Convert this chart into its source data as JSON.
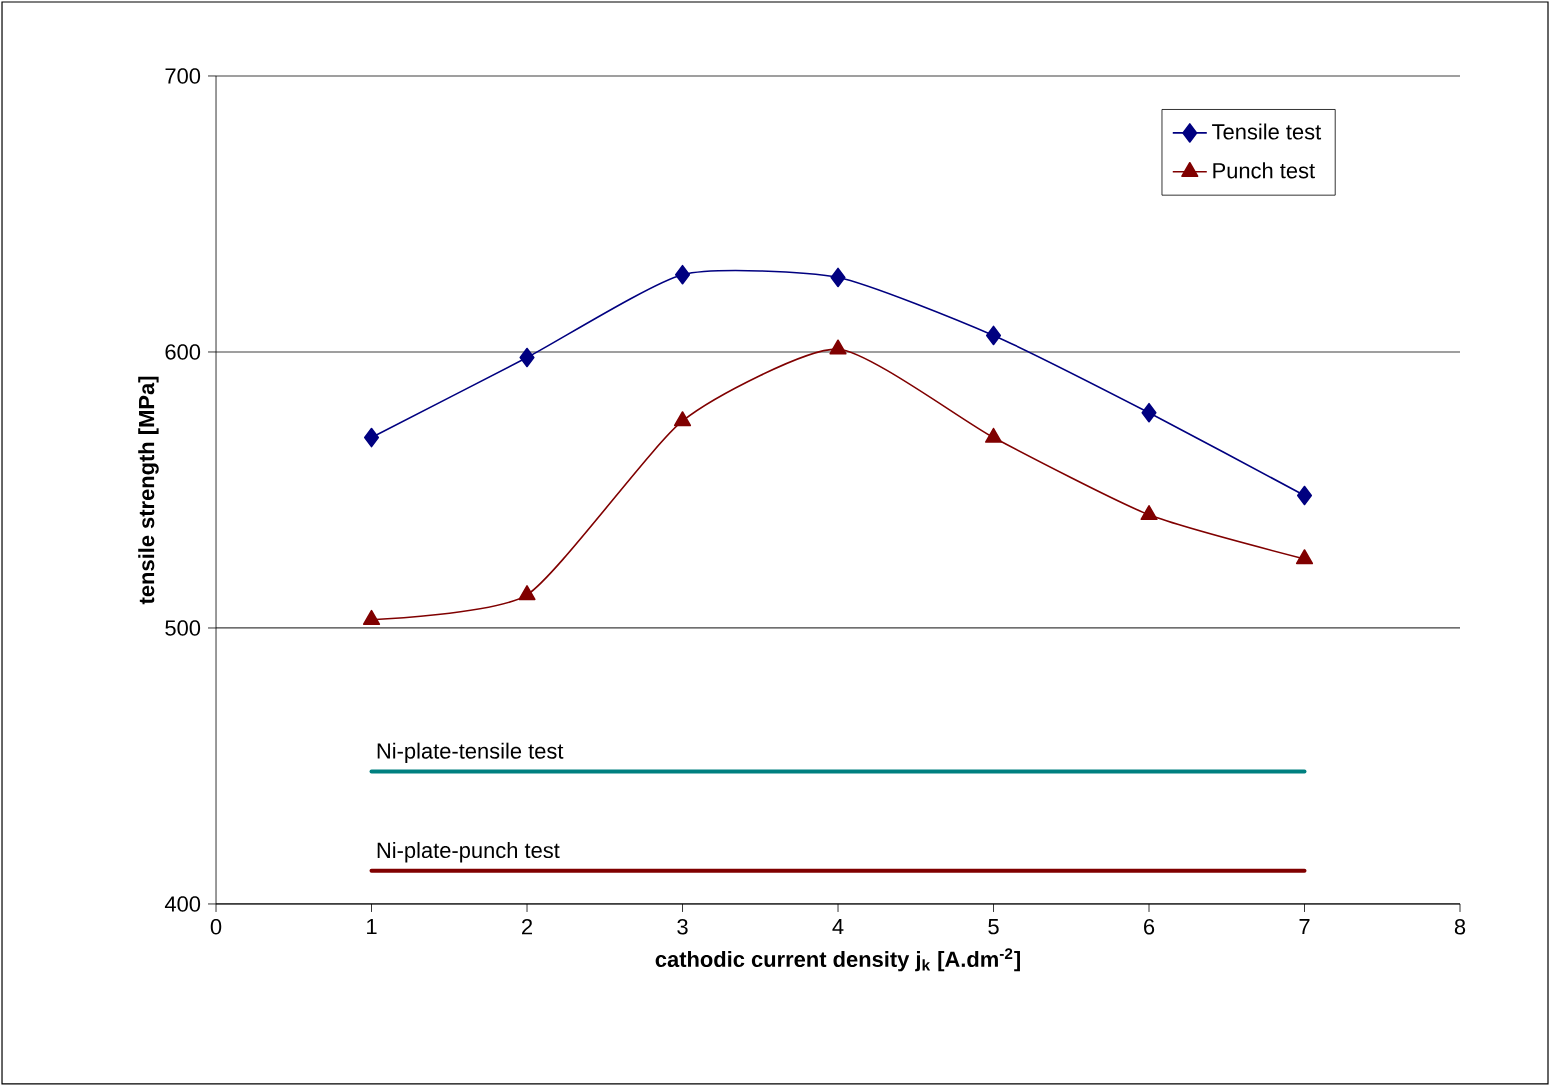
{
  "chart_data": {
    "type": "line",
    "xlabel": "cathodic current density j$_{k}$ [A.dm$^{-2}$]",
    "ylabel": "tensile strength [MPa]",
    "xlim": [
      0,
      8
    ],
    "xticks": [
      0,
      1,
      2,
      3,
      4,
      5,
      6,
      7,
      8
    ],
    "ylim": [
      400,
      700
    ],
    "yticks": [
      400,
      500,
      600,
      700
    ],
    "grid": "y",
    "legend": "top right",
    "series": [
      {
        "name": "Tensile test",
        "color": "#000080",
        "marker": "diamond",
        "x": [
          1,
          2,
          3,
          4,
          5,
          6,
          7
        ],
        "values": [
          569,
          598,
          628,
          627,
          606,
          578,
          548
        ]
      },
      {
        "name": "Punch test",
        "color": "#800000",
        "marker": "triangle",
        "x": [
          1,
          2,
          3,
          4,
          5,
          6,
          7
        ],
        "values": [
          503,
          512,
          575,
          601,
          569,
          541,
          525
        ]
      },
      {
        "name": "Ni-plate-tensile test",
        "color": "#008080",
        "marker": "none",
        "x": [
          1,
          7
        ],
        "values": [
          448,
          448
        ]
      },
      {
        "name": "Ni-plate-punch test",
        "color": "#800000",
        "marker": "none",
        "x": [
          1,
          7
        ],
        "values": [
          412,
          412
        ]
      }
    ]
  }
}
